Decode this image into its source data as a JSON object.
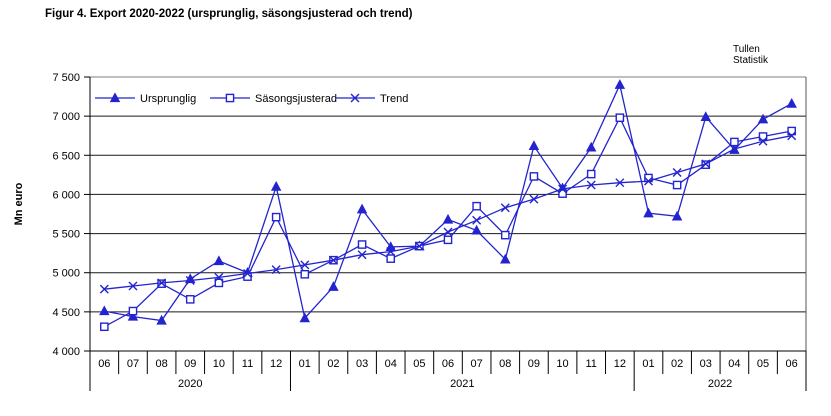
{
  "title": "Figur 4. Export 2020-2022 (ursprunglig, säsongsjusterad och trend)",
  "watermark": {
    "line1": "Tullen",
    "line2": "Statistik"
  },
  "chart_data": {
    "type": "line",
    "title": "Figur 4. Export 2020-2022 (ursprunglig, säsongsjusterad och trend)",
    "xlabel": "",
    "ylabel": "Mn euro",
    "ylim": [
      4000,
      7500
    ],
    "ytick_step": 500,
    "ytick_labels": [
      "4 000",
      "4 500",
      "5 000",
      "5 500",
      "6 000",
      "6 500",
      "7 000",
      "7 500"
    ],
    "grid": "horizontal",
    "legend_position": "top-inside",
    "line_color": "#2424cf",
    "categories": [
      "06",
      "07",
      "08",
      "09",
      "10",
      "11",
      "12",
      "01",
      "02",
      "03",
      "04",
      "05",
      "06",
      "07",
      "08",
      "09",
      "10",
      "11",
      "12",
      "01",
      "02",
      "03",
      "04",
      "05",
      "06"
    ],
    "year_groups": [
      {
        "label": "2020",
        "count": 7
      },
      {
        "label": "2021",
        "count": 12
      },
      {
        "label": "2022",
        "count": 6
      }
    ],
    "series": [
      {
        "name": "Ursprunglig",
        "marker": "triangle",
        "values": [
          4510,
          4440,
          4390,
          4920,
          5150,
          5000,
          6100,
          4420,
          4820,
          5810,
          5330,
          5340,
          5680,
          5540,
          5170,
          6620,
          6080,
          6600,
          7400,
          5760,
          5720,
          6990,
          6570,
          6960,
          7160
        ]
      },
      {
        "name": "Säsongsjusterad",
        "marker": "square",
        "values": [
          4310,
          4510,
          4860,
          4660,
          4870,
          4950,
          5710,
          4980,
          5160,
          5360,
          5180,
          5340,
          5420,
          5850,
          5480,
          6230,
          6010,
          6260,
          6980,
          6210,
          6120,
          6380,
          6670,
          6740,
          6810
        ]
      },
      {
        "name": "Trend",
        "marker": "x",
        "values": [
          4790,
          4830,
          4870,
          4900,
          4940,
          4990,
          5040,
          5100,
          5160,
          5230,
          5270,
          5340,
          5520,
          5670,
          5830,
          5940,
          6070,
          6120,
          6150,
          6170,
          6280,
          6390,
          6580,
          6680,
          6750
        ]
      }
    ]
  }
}
